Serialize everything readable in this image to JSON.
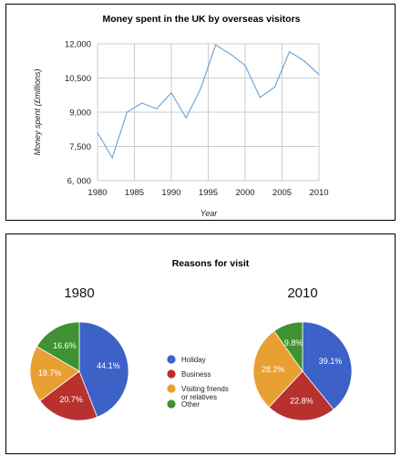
{
  "chart_data": [
    {
      "type": "line",
      "title": "Money spent in the UK by overseas visitors",
      "xlabel": "Year",
      "ylabel": "Money spent (£millions)",
      "x_ticks": [
        "1980",
        "1985",
        "1990",
        "1995",
        "2000",
        "2005",
        "2010"
      ],
      "y_ticks": [
        "6, 000",
        "7,500",
        "9,000",
        "10,500",
        "12,000"
      ],
      "xlim": [
        1980,
        2010
      ],
      "ylim": [
        6000,
        12000
      ],
      "grid": true,
      "series": [
        {
          "x": [
            1980,
            1982,
            1984,
            1986,
            1988,
            1990,
            1992,
            1994,
            1996,
            1998,
            2000,
            2002,
            2004,
            2006,
            2008,
            2010
          ],
          "y": [
            8100,
            7000,
            9000,
            9400,
            9150,
            9850,
            8750,
            10050,
            11950,
            11550,
            11050,
            9650,
            10100,
            11650,
            11250,
            10650
          ],
          "color": "#6fa8dc"
        }
      ]
    },
    {
      "type": "pie",
      "title": "Reasons for visit",
      "legend": [
        "Holiday",
        "Business",
        "Visiting friends or relatives",
        "Other"
      ],
      "legend_lines": [
        [
          "Holiday"
        ],
        [
          "Business"
        ],
        [
          "Visiting friends",
          "or relatives"
        ],
        [
          "Other"
        ]
      ],
      "colors": [
        "#3c62c8",
        "#b8312f",
        "#e8a033",
        "#3f9232"
      ],
      "pies": [
        {
          "year": "1980",
          "values": [
            44.1,
            20.7,
            18.7,
            16.6
          ],
          "labels": [
            "44.1%",
            "20.7%",
            "18.7%",
            "16.6%"
          ]
        },
        {
          "year": "2010",
          "values": [
            39.1,
            22.8,
            28.2,
            9.8
          ],
          "labels": [
            "39.1%",
            "22.8%",
            "28.2%",
            "9.8%"
          ]
        }
      ]
    }
  ]
}
